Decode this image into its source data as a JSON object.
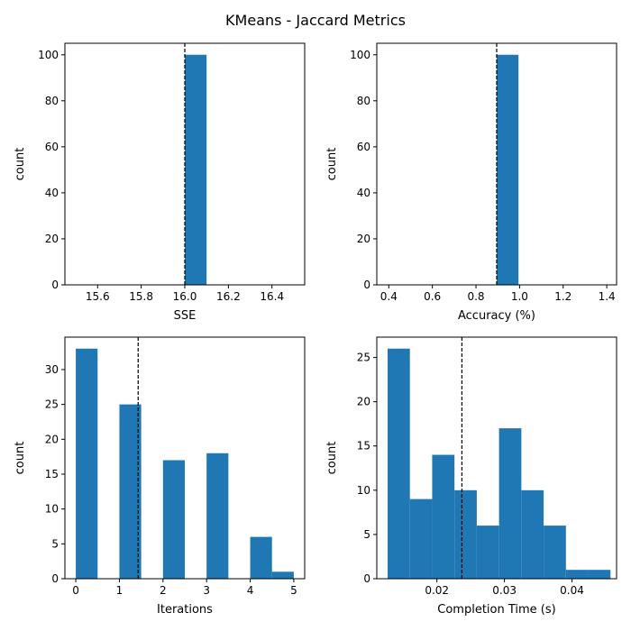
{
  "figure": {
    "title": "KMeans - Jaccard Metrics"
  },
  "colors": {
    "bar": "#1f77b4",
    "mean_line": "#000000",
    "axis": "#000000",
    "background": "#ffffff"
  },
  "chart_data": [
    {
      "type": "bar",
      "xlabel": "SSE",
      "ylabel": "count",
      "xlim": [
        15.45,
        16.55
      ],
      "ylim": [
        0,
        105
      ],
      "xticks": [
        15.6,
        15.8,
        16.0,
        16.2,
        16.4
      ],
      "xtick_labels": [
        "15.6",
        "15.8",
        "16.0",
        "16.2",
        "16.4"
      ],
      "yticks": [
        0,
        20,
        40,
        60,
        80,
        100
      ],
      "ytick_labels": [
        "0",
        "20",
        "40",
        "60",
        "80",
        "100"
      ],
      "bins": [
        {
          "x0": 16.0,
          "x1": 16.1,
          "count": 100
        }
      ],
      "mean_line": 16.0
    },
    {
      "type": "bar",
      "xlabel": "Accuracy (%)",
      "ylabel": "count",
      "xlim": [
        0.345,
        1.445
      ],
      "ylim": [
        0,
        105
      ],
      "xticks": [
        0.4,
        0.6,
        0.8,
        1.0,
        1.2,
        1.4
      ],
      "xtick_labels": [
        "0.4",
        "0.6",
        "0.8",
        "1.0",
        "1.2",
        "1.4"
      ],
      "yticks": [
        0,
        20,
        40,
        60,
        80,
        100
      ],
      "ytick_labels": [
        "0",
        "20",
        "40",
        "60",
        "80",
        "100"
      ],
      "bins": [
        {
          "x0": 0.895,
          "x1": 0.995,
          "count": 100
        }
      ],
      "mean_line": 0.895
    },
    {
      "type": "bar",
      "xlabel": "Iterations",
      "ylabel": "count",
      "xlim": [
        -0.25,
        5.25
      ],
      "ylim": [
        0,
        34.65
      ],
      "xticks": [
        0,
        1,
        2,
        3,
        4,
        5
      ],
      "xtick_labels": [
        "0",
        "1",
        "2",
        "3",
        "4",
        "5"
      ],
      "yticks": [
        0,
        5,
        10,
        15,
        20,
        25,
        30
      ],
      "ytick_labels": [
        "0",
        "5",
        "10",
        "15",
        "20",
        "25",
        "30"
      ],
      "bins": [
        {
          "x0": 0.0,
          "x1": 0.5,
          "count": 33
        },
        {
          "x0": 1.0,
          "x1": 1.5,
          "count": 25
        },
        {
          "x0": 2.0,
          "x1": 2.5,
          "count": 17
        },
        {
          "x0": 3.0,
          "x1": 3.5,
          "count": 18
        },
        {
          "x0": 4.0,
          "x1": 4.5,
          "count": 6
        },
        {
          "x0": 4.5,
          "x1": 5.0,
          "count": 1
        }
      ],
      "mean_line": 1.43
    },
    {
      "type": "bar",
      "xlabel": "Completion Time (s)",
      "ylabel": "count",
      "xlim": [
        0.0111,
        0.0466
      ],
      "ylim": [
        0,
        27.3
      ],
      "xticks": [
        0.02,
        0.03,
        0.04
      ],
      "xtick_labels": [
        "0.02",
        "0.03",
        "0.04"
      ],
      "yticks": [
        0,
        5,
        10,
        15,
        20,
        25
      ],
      "ytick_labels": [
        "0",
        "5",
        "10",
        "15",
        "20",
        "25"
      ],
      "bins": [
        {
          "x0": 0.0127,
          "x1": 0.016,
          "count": 26
        },
        {
          "x0": 0.016,
          "x1": 0.0193,
          "count": 9
        },
        {
          "x0": 0.0193,
          "x1": 0.0226,
          "count": 14
        },
        {
          "x0": 0.0226,
          "x1": 0.0259,
          "count": 10
        },
        {
          "x0": 0.0259,
          "x1": 0.0292,
          "count": 6
        },
        {
          "x0": 0.0292,
          "x1": 0.0325,
          "count": 17
        },
        {
          "x0": 0.0325,
          "x1": 0.0358,
          "count": 10
        },
        {
          "x0": 0.0358,
          "x1": 0.0391,
          "count": 6
        },
        {
          "x0": 0.0391,
          "x1": 0.0424,
          "count": 1
        },
        {
          "x0": 0.0424,
          "x1": 0.0457,
          "count": 1
        }
      ],
      "mean_line": 0.0237
    }
  ]
}
